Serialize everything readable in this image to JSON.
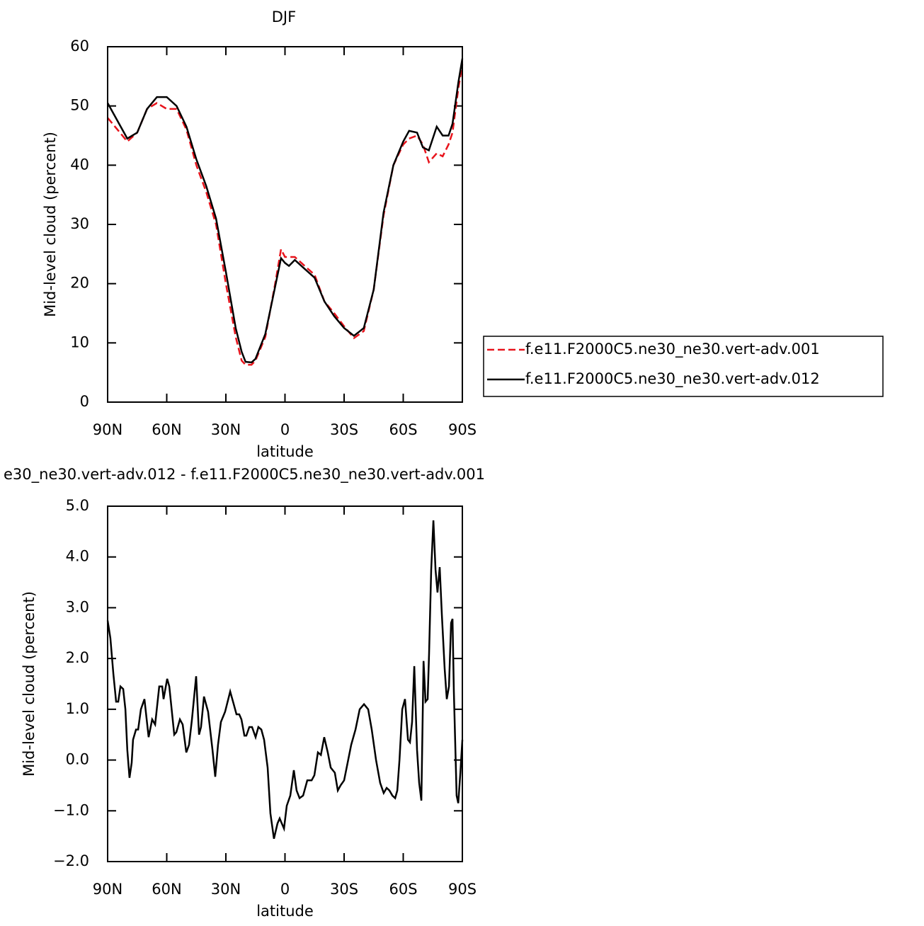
{
  "chart_data": [
    {
      "type": "line",
      "title": "DJF",
      "xlabel": "latitude",
      "ylabel": "Mid-level cloud (percent)",
      "xlim": [
        90,
        -90
      ],
      "ylim": [
        0,
        60
      ],
      "xticks": [
        {
          "value": 90,
          "label": "90N"
        },
        {
          "value": 60,
          "label": "60N"
        },
        {
          "value": 30,
          "label": "30N"
        },
        0,
        {
          "value": -30,
          "label": "30S"
        },
        {
          "value": -60,
          "label": "60S"
        },
        {
          "value": -90,
          "label": "90S"
        }
      ],
      "yticks": [
        0,
        10,
        20,
        30,
        40,
        50,
        60
      ],
      "legend": "right",
      "x": [
        90,
        85,
        80,
        75,
        70,
        65,
        60,
        55,
        50,
        45,
        40,
        35,
        30,
        25,
        22,
        20,
        17,
        15,
        10,
        5,
        2,
        0,
        -2,
        -5,
        -10,
        -15,
        -20,
        -25,
        -30,
        -35,
        -40,
        -45,
        -50,
        -55,
        -60,
        -63,
        -67,
        -70,
        -73,
        -77,
        -80,
        -83,
        -85,
        -88,
        -90
      ],
      "series": [
        {
          "name": "f.e11.F2000C5.ne30_ne30.vert-adv.001",
          "color": "#e8141c",
          "line_style": "dashed",
          "values": [
            48,
            46,
            44,
            45.5,
            49.5,
            50.5,
            49.5,
            49.5,
            46,
            40,
            35.5,
            30,
            20,
            11,
            7,
            6.3,
            6.3,
            7,
            11,
            20,
            25.8,
            24.5,
            24.5,
            24.5,
            23,
            21.5,
            17,
            15,
            12.8,
            10.8,
            12,
            19,
            31.5,
            40,
            43.5,
            44.5,
            45,
            43.5,
            40.5,
            42,
            41.5,
            43.5,
            45.5,
            53,
            57
          ]
        },
        {
          "name": "f.e11.F2000C5.ne30_ne30.vert-adv.012",
          "color": "#000000",
          "line_style": "solid",
          "values": [
            50.5,
            47.5,
            44.5,
            45.5,
            49.5,
            51.5,
            51.5,
            50,
            46.5,
            41,
            36.5,
            31,
            22,
            12.5,
            8.5,
            6.8,
            6.7,
            7.3,
            11.5,
            19.5,
            24.3,
            23.5,
            23,
            24,
            22.5,
            21,
            17,
            14.5,
            12.5,
            11.2,
            12.5,
            19,
            32,
            40,
            44,
            45.8,
            45.5,
            43,
            42.5,
            46.5,
            45,
            45,
            47,
            54,
            58
          ]
        }
      ]
    },
    {
      "type": "line",
      "title": "e30_ne30.vert-adv.012 - f.e11.F2000C5.ne30_ne30.vert-adv.001",
      "xlabel": "latitude",
      "ylabel": "Mid-level cloud (percent)",
      "xlim": [
        90,
        -90
      ],
      "ylim": [
        -2,
        5
      ],
      "xticks": [
        {
          "value": 90,
          "label": "90N"
        },
        {
          "value": 60,
          "label": "60N"
        },
        {
          "value": 30,
          "label": "30N"
        },
        0,
        {
          "value": -30,
          "label": "30S"
        },
        {
          "value": -60,
          "label": "60S"
        },
        {
          "value": -90,
          "label": "90S"
        }
      ],
      "yticks": [
        {
          "value": -2,
          "label": "−2.0"
        },
        {
          "value": -1,
          "label": "−1.0"
        },
        {
          "value": 0,
          "label": "0.0"
        },
        {
          "value": 1,
          "label": "1.0"
        },
        {
          "value": 2,
          "label": "2.0"
        },
        {
          "value": 3,
          "label": "3.0"
        },
        {
          "value": 4,
          "label": "4.0"
        },
        {
          "value": 5,
          "label": "5.0"
        }
      ],
      "x": [
        90,
        88.6,
        87.1,
        85.7,
        84.6,
        83.5,
        82.1,
        81,
        80,
        78.9,
        77.8,
        77.1,
        75.6,
        74.5,
        73.1,
        71.3,
        69.2,
        67.4,
        65.9,
        63.8,
        62.3,
        61.6,
        59.8,
        58.7,
        56.2,
        55.1,
        53.3,
        51.9,
        50.1,
        48.7,
        47.2,
        45.1,
        43.6,
        42.6,
        41.1,
        39,
        36.8,
        35.4,
        34,
        32.5,
        30.4,
        27.8,
        26,
        24.6,
        23.2,
        22.1,
        20.6,
        19.6,
        18.1,
        16.7,
        14.9,
        13.5,
        12,
        10.6,
        8.8,
        7.4,
        5.6,
        3.8,
        2.7,
        1.6,
        0.5,
        -0.9,
        -2.7,
        -4.5,
        -5.9,
        -7.4,
        -9.2,
        -11.3,
        -13.5,
        -14.9,
        -16.7,
        -18.2,
        -19.9,
        -21.7,
        -23.2,
        -25.3,
        -26.8,
        -28.2,
        -30,
        -31.8,
        -33.6,
        -35.8,
        -37.9,
        -40.1,
        -42.2,
        -44,
        -46.2,
        -48.3,
        -50.1,
        -51.6,
        -53,
        -54.5,
        -55.9,
        -57,
        -58.1,
        -59.5,
        -60.9,
        -62.4,
        -63.4,
        -64.5,
        -65.6,
        -67,
        -68.1,
        -69.2,
        -70.3,
        -71.3,
        -72.4,
        -73.1,
        -74.2,
        -75.3,
        -76.4,
        -77.4,
        -78.5,
        -79.6,
        -81,
        -82.1,
        -83.2,
        -84.3,
        -85,
        -85.7,
        -87.1,
        -87.9,
        -89,
        -90
      ],
      "series": [
        {
          "color": "#000000",
          "line_style": "solid",
          "values": [
            2.75,
            2.4,
            1.7,
            1.15,
            1.15,
            1.45,
            1.4,
            1.0,
            0.2,
            -0.35,
            -0.05,
            0.4,
            0.6,
            0.6,
            1.0,
            1.2,
            0.45,
            0.8,
            0.7,
            1.45,
            1.45,
            1.2,
            1.6,
            1.45,
            0.5,
            0.55,
            0.8,
            0.7,
            0.15,
            0.3,
            0.8,
            1.65,
            0.5,
            0.65,
            1.25,
            0.95,
            0.2,
            -0.33,
            0.3,
            0.75,
            0.95,
            1.35,
            1.1,
            0.9,
            0.9,
            0.8,
            0.48,
            0.48,
            0.65,
            0.65,
            0.45,
            0.65,
            0.6,
            0.4,
            -0.15,
            -1.05,
            -1.55,
            -1.25,
            -1.15,
            -1.25,
            -1.35,
            -0.9,
            -0.7,
            -0.2,
            -0.6,
            -0.75,
            -0.7,
            -0.4,
            -0.4,
            -0.3,
            0.15,
            0.1,
            0.45,
            0.15,
            -0.15,
            -0.25,
            -0.6,
            -0.5,
            -0.4,
            -0.05,
            0.3,
            0.6,
            1.0,
            1.1,
            1.0,
            0.6,
            0.0,
            -0.45,
            -0.65,
            -0.55,
            -0.6,
            -0.7,
            -0.75,
            -0.6,
            0.0,
            1.0,
            1.2,
            0.4,
            0.35,
            0.75,
            1.85,
            0.2,
            -0.45,
            -0.8,
            1.95,
            1.15,
            1.2,
            2.1,
            3.75,
            4.72,
            3.75,
            3.3,
            3.8,
            2.85,
            1.8,
            1.2,
            1.45,
            2.7,
            2.78,
            1.35,
            -0.7,
            -0.85,
            -0.25,
            0.4
          ]
        }
      ]
    }
  ]
}
